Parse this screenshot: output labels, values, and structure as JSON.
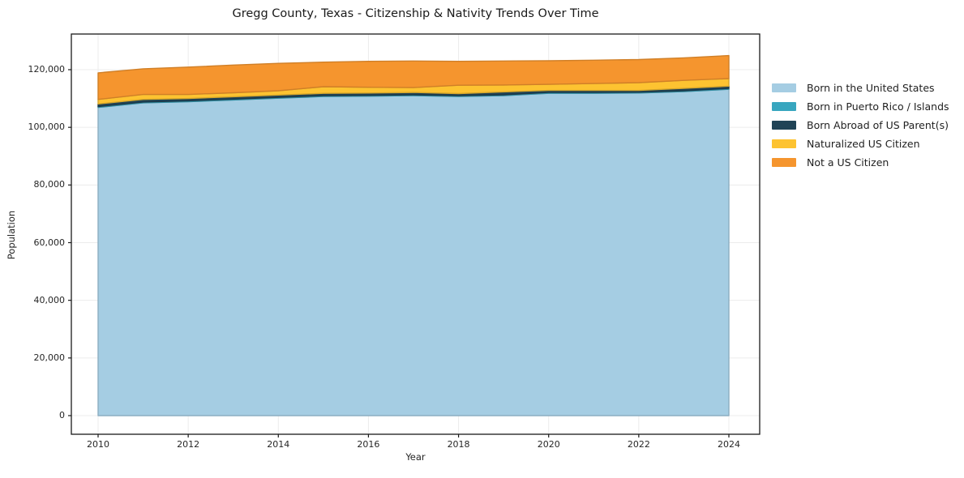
{
  "figure": {
    "title": "Gregg County, Texas - Citizenship & Nativity Trends Over Time"
  },
  "chart_data": {
    "type": "area",
    "stacked": true,
    "title": "Gregg County, Texas - Citizenship & Nativity Trends Over Time",
    "xlabel": "Year",
    "ylabel": "Population",
    "grid": true,
    "legend_position": "right-outside",
    "x": [
      2010,
      2011,
      2012,
      2013,
      2014,
      2015,
      2016,
      2017,
      2018,
      2019,
      2020,
      2021,
      2022,
      2023,
      2024
    ],
    "x_ticks": [
      2010,
      2012,
      2014,
      2016,
      2018,
      2020,
      2022,
      2024
    ],
    "y_ticks": [
      0,
      20000,
      40000,
      60000,
      80000,
      100000,
      120000
    ],
    "y_tick_labels": [
      "0",
      "20,000",
      "40,000",
      "60,000",
      "80,000",
      "100,000",
      "120,000"
    ],
    "xlim": [
      2009.4,
      2024.7
    ],
    "ylim": [
      -6465,
      132380
    ],
    "series": [
      {
        "name": "Born in the United States",
        "color": "#a5cde3",
        "values": [
          106900,
          108500,
          108900,
          109500,
          110100,
          110700,
          110800,
          111000,
          110700,
          111000,
          111800,
          111800,
          111900,
          112400,
          113200
        ]
      },
      {
        "name": "Born in Puerto Rico / Islands",
        "color": "#38a6bf",
        "values": [
          300,
          300,
          300,
          300,
          300,
          300,
          300,
          300,
          300,
          300,
          300,
          300,
          300,
          300,
          300
        ]
      },
      {
        "name": "Born Abroad of US Parent(s)",
        "color": "#204356",
        "values": [
          900,
          900,
          800,
          800,
          800,
          800,
          800,
          800,
          700,
          1000,
          700,
          700,
          600,
          800,
          800
        ]
      },
      {
        "name": "Naturalized US Citizen",
        "color": "#fdc331",
        "values": [
          1600,
          1700,
          1400,
          1400,
          1500,
          2300,
          2000,
          1700,
          2900,
          2400,
          2100,
          2400,
          2700,
          2800,
          2600
        ]
      },
      {
        "name": "Not a US Citizen",
        "color": "#f5952e",
        "values": [
          9200,
          8900,
          9500,
          9600,
          9500,
          8500,
          9000,
          9200,
          8300,
          8300,
          8200,
          8100,
          8000,
          7800,
          8000
        ]
      }
    ],
    "axis_colors": {
      "spine": "#1a1a1a",
      "grid": "#ececec",
      "text": "#262626"
    }
  }
}
